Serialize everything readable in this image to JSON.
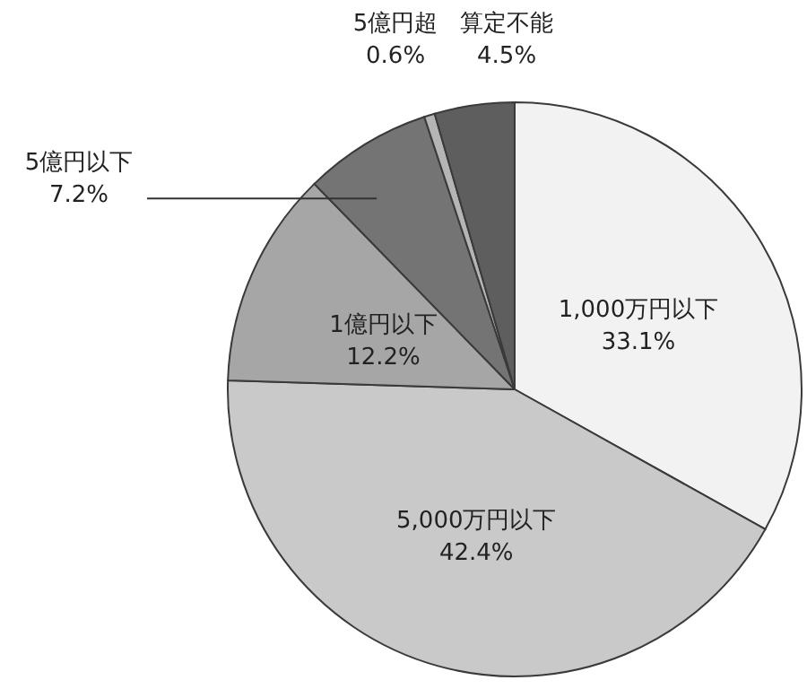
{
  "chart_data": {
    "type": "pie",
    "categories": [
      "1,000万円以下",
      "5,000万円以下",
      "1億円以下",
      "5億円以下",
      "5億円超",
      "算定不能"
    ],
    "values": [
      33.1,
      42.4,
      12.2,
      7.2,
      0.6,
      4.5
    ],
    "value_labels": [
      "33.1%",
      "42.4%",
      "12.2%",
      "7.2%",
      "0.6%",
      "4.5%"
    ],
    "colors": [
      "#f2f2f2",
      "#c9c9c9",
      "#a6a6a6",
      "#747474",
      "#b5b5b5",
      "#5e5e5e"
    ]
  }
}
